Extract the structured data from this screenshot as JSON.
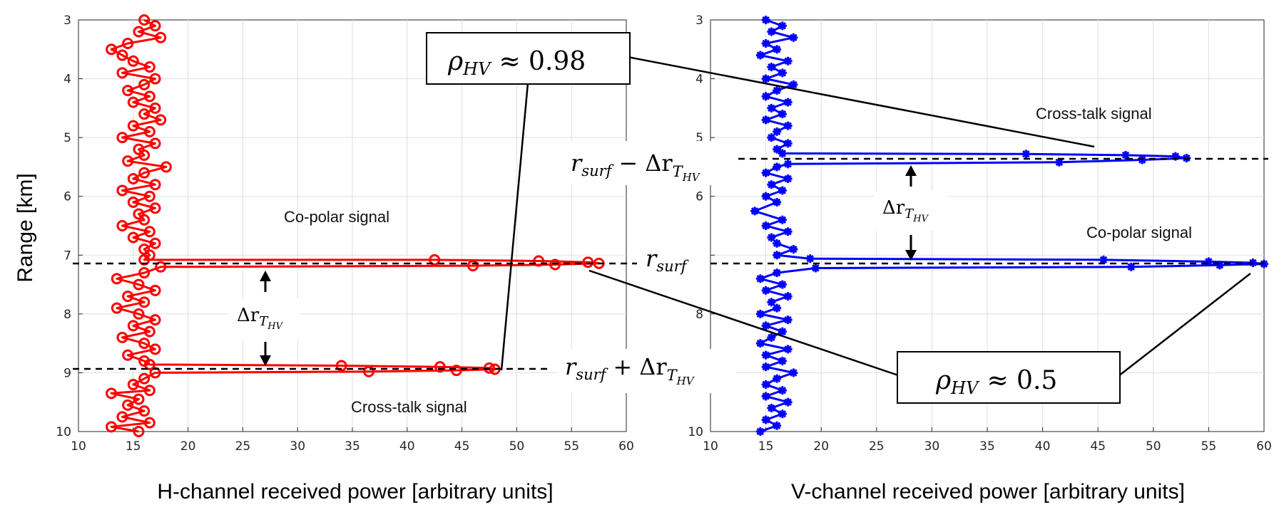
{
  "chart_data": [
    {
      "type": "line",
      "ylabel": "Range [km]",
      "xlabel": "H-channel received power [arbitrary units]",
      "xlim": [
        10,
        60
      ],
      "ylim": [
        3,
        10
      ],
      "y_reversed": true,
      "grid": true,
      "xticks": [
        "10",
        "15",
        "20",
        "25",
        "30",
        "35",
        "40",
        "45",
        "50",
        "55",
        "60"
      ],
      "yticks": [
        "3",
        "4",
        "5",
        "6",
        "7",
        "8",
        "9",
        "10"
      ],
      "color": "#ff0000",
      "marker": "circle",
      "series": [
        {
          "points": [
            [
              16,
              3.0
            ],
            [
              17,
              3.1
            ],
            [
              15.5,
              3.2
            ],
            [
              17.5,
              3.3
            ],
            [
              14.5,
              3.4
            ],
            [
              13,
              3.5
            ],
            [
              14,
              3.6
            ],
            [
              15,
              3.7
            ],
            [
              16.5,
              3.8
            ],
            [
              14,
              3.9
            ],
            [
              17,
              4.0
            ],
            [
              16,
              4.1
            ],
            [
              14.5,
              4.2
            ],
            [
              16.5,
              4.3
            ],
            [
              15,
              4.4
            ],
            [
              17,
              4.5
            ],
            [
              16,
              4.6
            ],
            [
              17.5,
              4.7
            ],
            [
              15,
              4.8
            ],
            [
              16.5,
              4.9
            ],
            [
              14,
              5.0
            ],
            [
              17,
              5.1
            ],
            [
              15.5,
              5.2
            ],
            [
              16,
              5.3
            ],
            [
              14.5,
              5.4
            ],
            [
              18,
              5.5
            ],
            [
              16,
              5.6
            ],
            [
              15,
              5.7
            ],
            [
              17,
              5.8
            ],
            [
              14,
              5.9
            ],
            [
              16.5,
              6.0
            ],
            [
              15,
              6.1
            ],
            [
              17,
              6.2
            ],
            [
              15.5,
              6.3
            ],
            [
              16,
              6.4
            ],
            [
              14,
              6.5
            ],
            [
              16.5,
              6.6
            ],
            [
              15,
              6.7
            ],
            [
              17,
              6.8
            ],
            [
              16,
              6.9
            ],
            [
              16.5,
              7.0
            ],
            [
              16,
              7.08
            ],
            [
              42.5,
              7.08
            ],
            [
              52,
              7.1
            ],
            [
              56.5,
              7.12
            ],
            [
              57.5,
              7.14
            ],
            [
              53.5,
              7.16
            ],
            [
              46,
              7.18
            ],
            [
              17.5,
              7.2
            ],
            [
              16,
              7.3
            ],
            [
              13.5,
              7.4
            ],
            [
              15.5,
              7.5
            ],
            [
              17,
              7.6
            ],
            [
              14.5,
              7.7
            ],
            [
              16,
              7.8
            ],
            [
              13.5,
              7.9
            ],
            [
              15.5,
              8.0
            ],
            [
              17,
              8.1
            ],
            [
              15,
              8.2
            ],
            [
              16.5,
              8.3
            ],
            [
              14,
              8.4
            ],
            [
              16,
              8.5
            ],
            [
              17,
              8.6
            ],
            [
              14.5,
              8.7
            ],
            [
              16,
              8.8
            ],
            [
              16.5,
              8.86
            ],
            [
              34,
              8.88
            ],
            [
              43,
              8.9
            ],
            [
              47.5,
              8.92
            ],
            [
              48,
              8.94
            ],
            [
              44.5,
              8.96
            ],
            [
              36.5,
              8.98
            ],
            [
              17,
              9.0
            ],
            [
              16,
              9.1
            ],
            [
              15,
              9.2
            ],
            [
              16.5,
              9.3
            ],
            [
              13,
              9.35
            ],
            [
              15.5,
              9.45
            ],
            [
              14.5,
              9.55
            ],
            [
              16,
              9.65
            ],
            [
              14,
              9.75
            ],
            [
              16.5,
              9.85
            ],
            [
              13,
              9.92
            ],
            [
              15.5,
              10.0
            ]
          ]
        }
      ],
      "annotations": [
        {
          "text": "Co-polar signal",
          "x": 27,
          "y": 6.8
        },
        {
          "text": "Cross-talk signal",
          "x": 37.5,
          "y": 9.5
        }
      ],
      "reference_lines": [
        "r_surf (≈7.12 km)",
        "r_surf + Δr_T_HV (≈8.92 km)"
      ]
    },
    {
      "type": "line",
      "xlabel": "V-channel received power [arbitrary units]",
      "xlim": [
        10,
        60
      ],
      "ylim": [
        3,
        10
      ],
      "y_reversed": true,
      "grid": true,
      "xticks": [
        "10",
        "15",
        "20",
        "25",
        "30",
        "35",
        "40",
        "45",
        "50",
        "55",
        "60"
      ],
      "color": "#0000ff",
      "marker": "asterisk",
      "series": [
        {
          "points": [
            [
              15,
              3.0
            ],
            [
              16.5,
              3.1
            ],
            [
              15.5,
              3.2
            ],
            [
              17.5,
              3.3
            ],
            [
              15,
              3.4
            ],
            [
              16,
              3.5
            ],
            [
              14.5,
              3.6
            ],
            [
              17,
              3.7
            ],
            [
              15.5,
              3.8
            ],
            [
              16.5,
              3.9
            ],
            [
              15,
              4.0
            ],
            [
              17.5,
              4.1
            ],
            [
              16,
              4.2
            ],
            [
              15,
              4.3
            ],
            [
              17,
              4.4
            ],
            [
              15.5,
              4.5
            ],
            [
              16.5,
              4.6
            ],
            [
              15,
              4.7
            ],
            [
              17,
              4.8
            ],
            [
              16,
              4.9
            ],
            [
              15.5,
              5.0
            ],
            [
              17,
              5.1
            ],
            [
              16,
              5.2
            ],
            [
              16.5,
              5.27
            ],
            [
              38.5,
              5.28
            ],
            [
              47.5,
              5.3
            ],
            [
              52,
              5.32
            ],
            [
              53,
              5.35
            ],
            [
              49,
              5.38
            ],
            [
              41.5,
              5.42
            ],
            [
              17,
              5.45
            ],
            [
              16,
              5.5
            ],
            [
              15,
              5.6
            ],
            [
              17,
              5.7
            ],
            [
              15.5,
              5.8
            ],
            [
              16.5,
              5.9
            ],
            [
              15,
              6.0
            ],
            [
              16,
              6.1
            ],
            [
              14,
              6.25
            ],
            [
              16.5,
              6.4
            ],
            [
              15,
              6.5
            ],
            [
              17,
              6.6
            ],
            [
              15.5,
              6.7
            ],
            [
              16,
              6.8
            ],
            [
              17.5,
              6.9
            ],
            [
              16,
              7.0
            ],
            [
              19,
              7.06
            ],
            [
              45.5,
              7.08
            ],
            [
              55,
              7.11
            ],
            [
              59,
              7.13
            ],
            [
              60,
              7.15
            ],
            [
              56,
              7.17
            ],
            [
              48,
              7.2
            ],
            [
              19.5,
              7.22
            ],
            [
              16,
              7.3
            ],
            [
              14.5,
              7.4
            ],
            [
              16.5,
              7.5
            ],
            [
              15,
              7.6
            ],
            [
              17,
              7.7
            ],
            [
              15.5,
              7.8
            ],
            [
              16,
              7.9
            ],
            [
              14.5,
              8.0
            ],
            [
              17,
              8.1
            ],
            [
              15,
              8.2
            ],
            [
              16.5,
              8.3
            ],
            [
              15.5,
              8.4
            ],
            [
              14.5,
              8.5
            ],
            [
              17,
              8.6
            ],
            [
              15,
              8.7
            ],
            [
              16.5,
              8.8
            ],
            [
              15,
              8.9
            ],
            [
              17.5,
              9.0
            ],
            [
              16,
              9.1
            ],
            [
              15,
              9.2
            ],
            [
              16.5,
              9.3
            ],
            [
              15,
              9.4
            ],
            [
              17,
              9.5
            ],
            [
              15.5,
              9.6
            ],
            [
              16.5,
              9.7
            ],
            [
              15,
              9.8
            ],
            [
              16,
              9.9
            ],
            [
              14.5,
              10.0
            ]
          ]
        }
      ],
      "annotations": [
        {
          "text": "Cross-talk signal",
          "x": 46,
          "y": 5.05
        },
        {
          "text": "Co-polar signal",
          "x": 51,
          "y": 6.95
        }
      ],
      "reference_lines": [
        "r_surf − Δr_T_HV (≈5.35 km)",
        "r_surf (≈7.12 km)"
      ]
    }
  ],
  "labels": {
    "copolar_h": "Co-polar signal",
    "crosstalk_h": "Cross-talk signal",
    "crosstalk_v": "Cross-talk signal",
    "copolar_v": "Co-polar signal",
    "rho_sym": "ρ",
    "rho_sub": "HV",
    "rho_high_value": "≈ 0.98",
    "rho_low_value": "≈ 0.5",
    "r_sym": "r",
    "r_sub": "surf",
    "plus": "+",
    "minus": "−",
    "delta_r": "Δr",
    "T_sub": "T",
    "HV_subsub": "HV"
  }
}
